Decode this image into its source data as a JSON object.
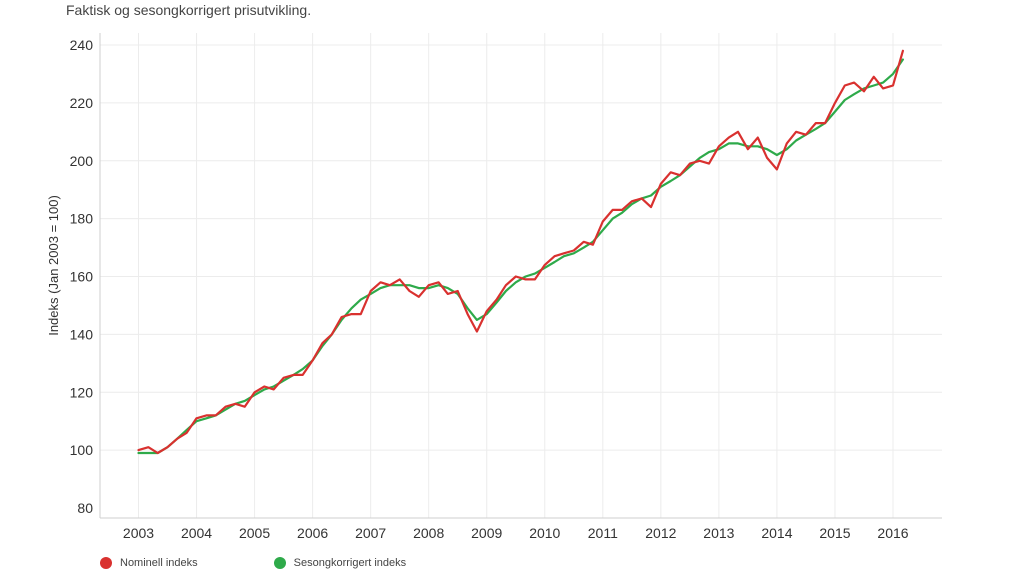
{
  "subtitle": "Faktisk og sesongkorrigert prisutvikling.",
  "chart_data": {
    "type": "line",
    "ylabel": "Indeks (Jan 2003 = 100)",
    "xlabel": "",
    "xlim": [
      2003,
      2016.2
    ],
    "ylim": [
      75,
      242
    ],
    "y_ticks": [
      80,
      100,
      120,
      140,
      160,
      180,
      200,
      220,
      240
    ],
    "x_ticks": [
      2003,
      2004,
      2005,
      2006,
      2007,
      2008,
      2009,
      2010,
      2011,
      2012,
      2013,
      2014,
      2015,
      2016
    ],
    "grid": true,
    "legend_position": "bottom",
    "series": [
      {
        "name": "Nominell indeks",
        "color": "#d9312f",
        "x": [
          2003.0,
          2003.17,
          2003.33,
          2003.5,
          2003.67,
          2003.83,
          2004.0,
          2004.17,
          2004.33,
          2004.5,
          2004.67,
          2004.83,
          2005.0,
          2005.17,
          2005.33,
          2005.5,
          2005.67,
          2005.83,
          2006.0,
          2006.17,
          2006.33,
          2006.5,
          2006.67,
          2006.83,
          2007.0,
          2007.17,
          2007.33,
          2007.5,
          2007.67,
          2007.83,
          2008.0,
          2008.17,
          2008.33,
          2008.5,
          2008.67,
          2008.83,
          2009.0,
          2009.17,
          2009.33,
          2009.5,
          2009.67,
          2009.83,
          2010.0,
          2010.17,
          2010.33,
          2010.5,
          2010.67,
          2010.83,
          2011.0,
          2011.17,
          2011.33,
          2011.5,
          2011.67,
          2011.83,
          2012.0,
          2012.17,
          2012.33,
          2012.5,
          2012.67,
          2012.83,
          2013.0,
          2013.17,
          2013.33,
          2013.5,
          2013.67,
          2013.83,
          2014.0,
          2014.17,
          2014.33,
          2014.5,
          2014.67,
          2014.83,
          2015.0,
          2015.17,
          2015.33,
          2015.5,
          2015.67,
          2015.83,
          2016.0,
          2016.17
        ],
        "values": [
          100,
          101,
          99,
          101,
          104,
          106,
          111,
          112,
          112,
          115,
          116,
          115,
          120,
          122,
          121,
          125,
          126,
          126,
          131,
          137,
          140,
          146,
          147,
          147,
          155,
          158,
          157,
          159,
          155,
          153,
          157,
          158,
          154,
          155,
          147,
          141,
          148,
          152,
          157,
          160,
          159,
          159,
          164,
          167,
          168,
          169,
          172,
          171,
          179,
          183,
          183,
          186,
          187,
          184,
          192,
          196,
          195,
          199,
          200,
          199,
          205,
          208,
          210,
          204,
          208,
          201,
          197,
          206,
          210,
          209,
          213,
          213,
          220,
          226,
          227,
          224,
          229,
          225,
          226,
          238
        ]
      },
      {
        "name": "Sesongkorrigert indeks",
        "color": "#2eaa4a",
        "x": [
          2003.0,
          2003.17,
          2003.33,
          2003.5,
          2003.67,
          2003.83,
          2004.0,
          2004.17,
          2004.33,
          2004.5,
          2004.67,
          2004.83,
          2005.0,
          2005.17,
          2005.33,
          2005.5,
          2005.67,
          2005.83,
          2006.0,
          2006.17,
          2006.33,
          2006.5,
          2006.67,
          2006.83,
          2007.0,
          2007.17,
          2007.33,
          2007.5,
          2007.67,
          2007.83,
          2008.0,
          2008.17,
          2008.33,
          2008.5,
          2008.67,
          2008.83,
          2009.0,
          2009.17,
          2009.33,
          2009.5,
          2009.67,
          2009.83,
          2010.0,
          2010.17,
          2010.33,
          2010.5,
          2010.67,
          2010.83,
          2011.0,
          2011.17,
          2011.33,
          2011.5,
          2011.67,
          2011.83,
          2012.0,
          2012.17,
          2012.33,
          2012.5,
          2012.67,
          2012.83,
          2013.0,
          2013.17,
          2013.33,
          2013.5,
          2013.67,
          2013.83,
          2014.0,
          2014.17,
          2014.33,
          2014.5,
          2014.67,
          2014.83,
          2015.0,
          2015.17,
          2015.33,
          2015.5,
          2015.67,
          2015.83,
          2016.0,
          2016.17
        ],
        "values": [
          99,
          99,
          99,
          101,
          104,
          107,
          110,
          111,
          112,
          114,
          116,
          117,
          119,
          121,
          122,
          124,
          126,
          128,
          131,
          136,
          140,
          145,
          149,
          152,
          154,
          156,
          157,
          157,
          157,
          156,
          156,
          157,
          156,
          154,
          149,
          145,
          147,
          151,
          155,
          158,
          160,
          161,
          163,
          165,
          167,
          168,
          170,
          172,
          176,
          180,
          182,
          185,
          187,
          188,
          191,
          193,
          195,
          198,
          201,
          203,
          204,
          206,
          206,
          205,
          205,
          204,
          202,
          204,
          207,
          209,
          211,
          213,
          217,
          221,
          223,
          225,
          226,
          227,
          230,
          235
        ]
      }
    ]
  },
  "legend": {
    "items": [
      {
        "label": "Nominell indeks",
        "color": "#d9312f"
      },
      {
        "label": "Sesongkorrigert indeks",
        "color": "#2eaa4a"
      }
    ]
  }
}
